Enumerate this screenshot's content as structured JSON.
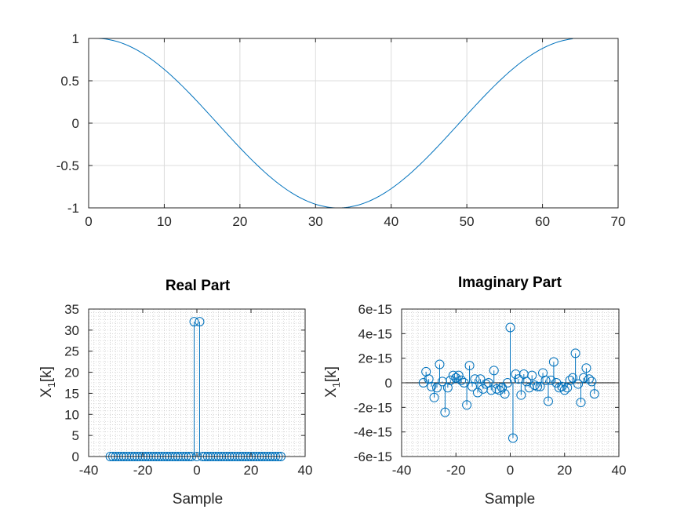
{
  "chart_data": [
    {
      "type": "line",
      "title": "",
      "xlabel": "",
      "ylabel": "",
      "xlim": [
        0,
        70
      ],
      "ylim": [
        -1,
        1
      ],
      "xticks": [
        0,
        10,
        20,
        30,
        40,
        50,
        60,
        70
      ],
      "yticks": [
        -1,
        -0.5,
        0,
        0.5,
        1
      ],
      "grid": true,
      "color": "#0072bd",
      "series": [
        {
          "function": "cos(2*pi*(x-1)/64)",
          "x_range": [
            1,
            64
          ]
        }
      ]
    },
    {
      "type": "stem",
      "title": "Real Part",
      "xlabel": "Sample",
      "ylabel": "X",
      "ylabel_sub": "1",
      "ylabel_suffix": "[k]",
      "xlim": [
        -40,
        40
      ],
      "ylim": [
        0,
        35
      ],
      "xticks": [
        -40,
        -20,
        0,
        20,
        40
      ],
      "yticks": [
        0,
        5,
        10,
        15,
        20,
        25,
        30,
        35
      ],
      "grid": "minor",
      "color": "#0072bd",
      "x": [
        -32,
        -31,
        -30,
        -29,
        -28,
        -27,
        -26,
        -25,
        -24,
        -23,
        -22,
        -21,
        -20,
        -19,
        -18,
        -17,
        -16,
        -15,
        -14,
        -13,
        -12,
        -11,
        -10,
        -9,
        -8,
        -7,
        -6,
        -5,
        -4,
        -3,
        -2,
        -1,
        0,
        1,
        2,
        3,
        4,
        5,
        6,
        7,
        8,
        9,
        10,
        11,
        12,
        13,
        14,
        15,
        16,
        17,
        18,
        19,
        20,
        21,
        22,
        23,
        24,
        25,
        26,
        27,
        28,
        29,
        30,
        31
      ],
      "values": [
        0,
        0,
        0,
        0,
        0,
        0,
        0,
        0,
        0,
        0,
        0,
        0,
        0,
        0,
        0,
        0,
        0,
        0,
        0,
        0,
        0,
        0,
        0,
        0,
        0,
        0,
        0,
        0,
        0,
        0,
        0,
        32,
        0,
        32,
        0,
        0,
        0,
        0,
        0,
        0,
        0,
        0,
        0,
        0,
        0,
        0,
        0,
        0,
        0,
        0,
        0,
        0,
        0,
        0,
        0,
        0,
        0,
        0,
        0,
        0,
        0,
        0,
        0,
        0
      ]
    },
    {
      "type": "stem",
      "title": "Imaginary Part",
      "xlabel": "Sample",
      "ylabel": "X",
      "ylabel_sub": "1",
      "ylabel_suffix": "[k]",
      "xlim": [
        -40,
        40
      ],
      "ylim": [
        -6e-15,
        6e-15
      ],
      "xticks": [
        -40,
        -20,
        0,
        20,
        40
      ],
      "yticks": [
        -6e-15,
        -4e-15,
        -2e-15,
        0,
        2e-15,
        4e-15,
        6e-15
      ],
      "ytick_labels": [
        "-6e-15",
        "-4e-15",
        "-2e-15",
        "0",
        "2e-15",
        "4e-15",
        "6e-15"
      ],
      "grid": "minor",
      "color": "#0072bd",
      "x": [
        -32,
        -31,
        -30,
        -29,
        -28,
        -27,
        -26,
        -25,
        -24,
        -23,
        -22,
        -21,
        -20,
        -19,
        -18,
        -17,
        -16,
        -15,
        -14,
        -13,
        -12,
        -11,
        -10,
        -9,
        -8,
        -7,
        -6,
        -5,
        -4,
        -3,
        -2,
        -1,
        0,
        1,
        2,
        3,
        4,
        5,
        6,
        7,
        8,
        9,
        10,
        11,
        12,
        13,
        14,
        15,
        16,
        17,
        18,
        19,
        20,
        21,
        22,
        23,
        24,
        25,
        26,
        27,
        28,
        29,
        30,
        31
      ],
      "values": [
        0,
        9e-16,
        3e-16,
        -3e-16,
        -1.2e-15,
        -4e-16,
        1.5e-15,
        1e-16,
        -2.4e-15,
        -4e-16,
        2e-16,
        6e-16,
        4e-16,
        6e-16,
        2e-16,
        0,
        -1.8e-15,
        1.4e-15,
        -3e-16,
        3e-16,
        -8e-16,
        3e-16,
        -5e-16,
        -1e-16,
        0,
        -6e-16,
        1e-15,
        -5e-16,
        -6e-16,
        -4e-16,
        -9e-16,
        0,
        4.5e-15,
        -4.5e-15,
        7e-16,
        3e-16,
        -1e-15,
        7e-16,
        1e-16,
        -4e-16,
        6e-16,
        -2e-16,
        -3e-16,
        -3e-16,
        8e-16,
        2e-16,
        -1.5e-15,
        2e-16,
        1.7e-15,
        0,
        -4e-16,
        -3e-16,
        -6e-16,
        -4e-16,
        2e-16,
        4e-16,
        2.4e-15,
        -1e-16,
        -1.6e-15,
        4e-16,
        1.2e-15,
        3e-16,
        1e-16,
        -9e-16
      ]
    }
  ]
}
